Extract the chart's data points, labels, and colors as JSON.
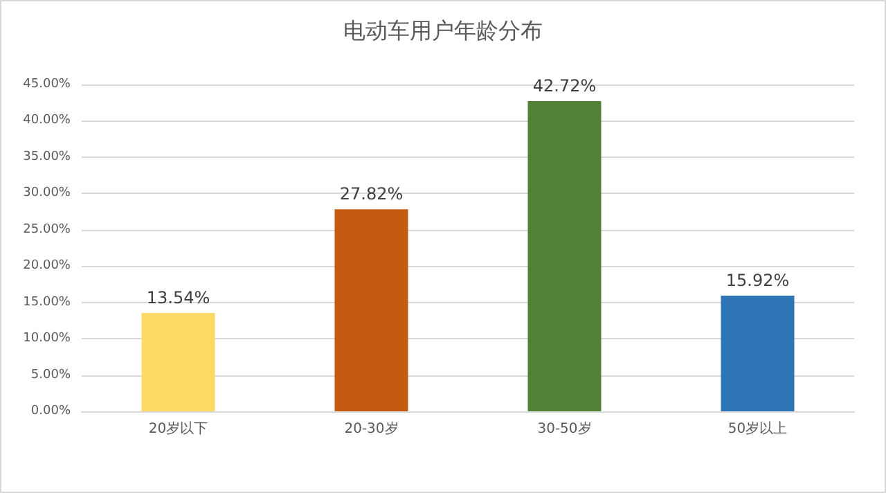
{
  "chart_data": {
    "type": "bar",
    "title": "电动车用户年龄分布",
    "categories": [
      "20岁以下",
      "20-30岁",
      "30-50岁",
      "50岁以上"
    ],
    "values": [
      13.54,
      27.82,
      42.72,
      15.92
    ],
    "colors": [
      "#ffd966",
      "#c55a11",
      "#538135",
      "#2e75b6"
    ],
    "value_labels": [
      "13.54%",
      "27.82%",
      "42.72%",
      "15.92%"
    ],
    "ylim": [
      0,
      45
    ],
    "yticks": [
      {
        "value": 0,
        "label": "0.00%"
      },
      {
        "value": 5,
        "label": "5.00%"
      },
      {
        "value": 10,
        "label": "10.00%"
      },
      {
        "value": 15,
        "label": "15.00%"
      },
      {
        "value": 20,
        "label": "20.00%"
      },
      {
        "value": 25,
        "label": "25.00%"
      },
      {
        "value": 30,
        "label": "30.00%"
      },
      {
        "value": 35,
        "label": "35.00%"
      },
      {
        "value": 40,
        "label": "40.00%"
      },
      {
        "value": 45,
        "label": "45.00%"
      }
    ],
    "grid": "y"
  }
}
